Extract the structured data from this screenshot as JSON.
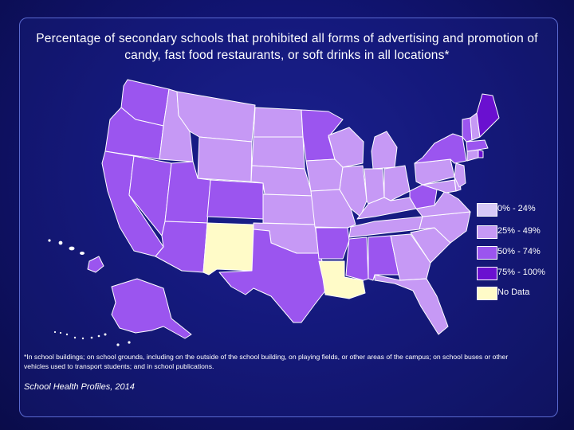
{
  "title": "Percentage of secondary schools that prohibited all forms of advertising and promotion of candy, fast food restaurants, or soft drinks in all locations*",
  "legend": {
    "items": [
      {
        "label": "0% - 24%",
        "color": "#d7c8f7"
      },
      {
        "label": "25% - 49%",
        "color": "#c699f5"
      },
      {
        "label": "50% - 74%",
        "color": "#9b55ef"
      },
      {
        "label": "75% - 100%",
        "color": "#6a10d0"
      },
      {
        "label": "No Data",
        "color": "#fffbc8"
      }
    ]
  },
  "categories": {
    "c0": "#d7c8f7",
    "c1": "#c699f5",
    "c2": "#9b55ef",
    "c3": "#6a10d0",
    "nd": "#fffbc8"
  },
  "states": [
    {
      "id": "WA",
      "cat": "c2"
    },
    {
      "id": "OR",
      "cat": "c2"
    },
    {
      "id": "CA",
      "cat": "c2"
    },
    {
      "id": "NV",
      "cat": "c2"
    },
    {
      "id": "ID",
      "cat": "c1"
    },
    {
      "id": "MT",
      "cat": "c1"
    },
    {
      "id": "WY",
      "cat": "c1"
    },
    {
      "id": "UT",
      "cat": "c2"
    },
    {
      "id": "AZ",
      "cat": "c2"
    },
    {
      "id": "CO",
      "cat": "c2"
    },
    {
      "id": "NM",
      "cat": "nd"
    },
    {
      "id": "ND",
      "cat": "c1"
    },
    {
      "id": "SD",
      "cat": "c1"
    },
    {
      "id": "NE",
      "cat": "c1"
    },
    {
      "id": "KS",
      "cat": "c1"
    },
    {
      "id": "OK",
      "cat": "c1"
    },
    {
      "id": "TX",
      "cat": "c2"
    },
    {
      "id": "MN",
      "cat": "c2"
    },
    {
      "id": "IA",
      "cat": "c1"
    },
    {
      "id": "MO",
      "cat": "c1"
    },
    {
      "id": "AR",
      "cat": "c2"
    },
    {
      "id": "LA",
      "cat": "nd"
    },
    {
      "id": "WI",
      "cat": "c1"
    },
    {
      "id": "IL",
      "cat": "c1"
    },
    {
      "id": "MI",
      "cat": "c1"
    },
    {
      "id": "IN",
      "cat": "c1"
    },
    {
      "id": "OH",
      "cat": "c1"
    },
    {
      "id": "KY",
      "cat": "c1"
    },
    {
      "id": "TN",
      "cat": "c1"
    },
    {
      "id": "MS",
      "cat": "c2"
    },
    {
      "id": "AL",
      "cat": "c2"
    },
    {
      "id": "GA",
      "cat": "c1"
    },
    {
      "id": "FL",
      "cat": "c1"
    },
    {
      "id": "SC",
      "cat": "c1"
    },
    {
      "id": "NC",
      "cat": "c1"
    },
    {
      "id": "VA",
      "cat": "c1"
    },
    {
      "id": "WV",
      "cat": "c2"
    },
    {
      "id": "PA",
      "cat": "c1"
    },
    {
      "id": "NY",
      "cat": "c2"
    },
    {
      "id": "VT",
      "cat": "c2"
    },
    {
      "id": "NH",
      "cat": "c1"
    },
    {
      "id": "ME",
      "cat": "c3"
    },
    {
      "id": "MA",
      "cat": "c2"
    },
    {
      "id": "RI",
      "cat": "c3"
    },
    {
      "id": "CT",
      "cat": "c1"
    },
    {
      "id": "NJ",
      "cat": "c1"
    },
    {
      "id": "DE",
      "cat": "c1"
    },
    {
      "id": "MD",
      "cat": "c1"
    },
    {
      "id": "AK",
      "cat": "c2"
    },
    {
      "id": "HI",
      "cat": "c2"
    }
  ],
  "footnote": "*In school buildings; on school grounds, including on the outside of the school building, on playing fields, or other areas of the campus; on school buses or other vehicles used to transport students; and in school publications.",
  "source": "School Health Profiles, 2014"
}
